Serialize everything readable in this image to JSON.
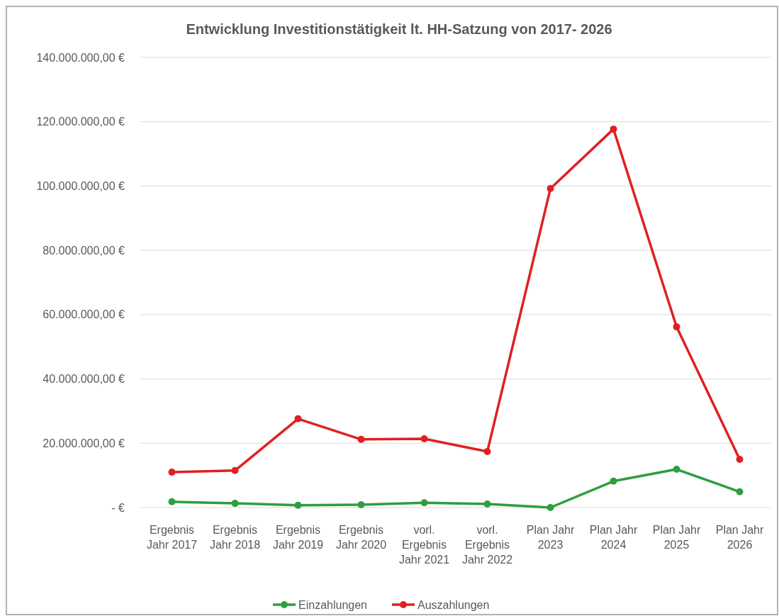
{
  "chart_data": {
    "type": "line",
    "title": "Entwicklung Investitionstätigkeit lt. HH-Satzung von 2017- 2026",
    "categories": [
      "Ergebnis Jahr 2017",
      "Ergebnis Jahr 2018",
      "Ergebnis Jahr 2019",
      "Ergebnis Jahr 2020",
      "vorl. Ergebnis Jahr 2021",
      "vorl. Ergebnis Jahr 2022",
      "Plan Jahr 2023",
      "Plan Jahr 2024",
      "Plan Jahr 2025",
      "Plan Jahr 2026"
    ],
    "series": [
      {
        "name": "Einzahlungen",
        "color": "#2e9e3e",
        "values": [
          1800000,
          1300000,
          700000,
          900000,
          1500000,
          1100000,
          0,
          8200000,
          11900000,
          4900000
        ]
      },
      {
        "name": "Auszahlungen",
        "color": "#e02020",
        "values": [
          11000000,
          11500000,
          27600000,
          21200000,
          21400000,
          17400000,
          99200000,
          117700000,
          56200000,
          15000000
        ]
      }
    ],
    "ylim": [
      0,
      140000000
    ],
    "yticks": [
      {
        "value": 0,
        "label": "-   €"
      },
      {
        "value": 20000000,
        "label": "20.000.000,00 €"
      },
      {
        "value": 40000000,
        "label": "40.000.000,00 €"
      },
      {
        "value": 60000000,
        "label": "60.000.000,00 €"
      },
      {
        "value": 80000000,
        "label": "80.000.000,00 €"
      },
      {
        "value": 100000000,
        "label": "100.000.000,00 €"
      },
      {
        "value": 120000000,
        "label": "120.000.000,00 €"
      },
      {
        "value": 140000000,
        "label": "140.000.000,00 €"
      }
    ],
    "grid": "y",
    "legend": "bottom",
    "marker": "circle",
    "line_style": "solid"
  }
}
